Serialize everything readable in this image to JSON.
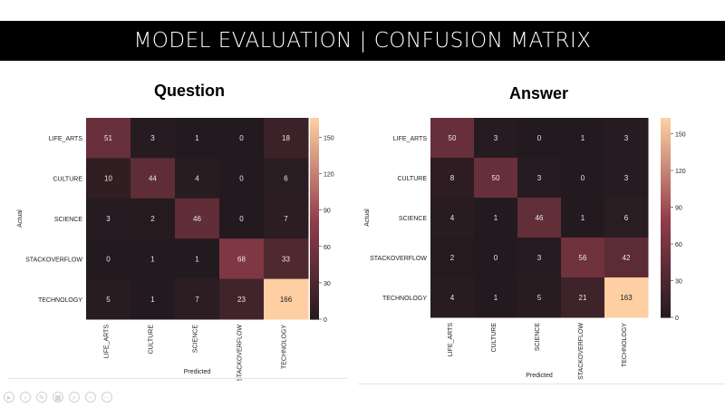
{
  "header": {
    "title": "MODEL EVALUATION | CONFUSION MATRIX"
  },
  "toolbar": {
    "icons": [
      "play-icon",
      "back-icon",
      "pen-icon",
      "grid-icon",
      "zoom-icon",
      "minus-icon",
      "more-icon"
    ]
  },
  "colors": {
    "low": "#221a1e",
    "mid": "#933d4b",
    "high": "#fdcfa2",
    "banner": "#000000"
  },
  "chart_data": [
    {
      "type": "heatmap",
      "title": "Question",
      "xlabel": "Predicted",
      "ylabel": "Actual",
      "labels": [
        "LIFE_ARTS",
        "CULTURE",
        "SCIENCE",
        "STACKOVERFLOW",
        "TECHNOLOGY"
      ],
      "matrix": [
        [
          51,
          3,
          1,
          0,
          18
        ],
        [
          10,
          44,
          4,
          0,
          6
        ],
        [
          3,
          2,
          46,
          0,
          7
        ],
        [
          0,
          1,
          1,
          68,
          33
        ],
        [
          5,
          1,
          7,
          23,
          166
        ]
      ],
      "matrix_text": [
        [
          "51",
          "3",
          "1",
          "0",
          "18"
        ],
        [
          "10",
          "44",
          "4",
          "0",
          "6"
        ],
        [
          "3",
          "2",
          "46",
          "0",
          "7"
        ],
        [
          "0",
          "1",
          "1",
          "68",
          "33"
        ],
        [
          "5",
          "1",
          "7",
          "23",
          "166"
        ]
      ],
      "colorbar": {
        "ticks": [
          "0",
          "30",
          "60",
          "90",
          "120",
          "150"
        ],
        "min": 0,
        "max": 166
      }
    },
    {
      "type": "heatmap",
      "title": "Answer",
      "xlabel": "Predicted",
      "ylabel": "Actual",
      "labels": [
        "LIFE_ARTS",
        "CULTURE",
        "SCIENCE",
        "STACKOVERFLOW",
        "TECHNOLOGY"
      ],
      "matrix": [
        [
          50,
          3,
          0,
          1,
          3
        ],
        [
          8,
          50,
          3,
          0,
          3
        ],
        [
          4,
          1,
          46,
          1,
          6
        ],
        [
          2,
          0,
          3,
          56,
          42
        ],
        [
          4,
          1,
          5,
          21,
          163
        ]
      ],
      "matrix_text": [
        [
          "50",
          "3",
          "0",
          "1",
          "3"
        ],
        [
          "8",
          "50",
          "3",
          "0",
          "3"
        ],
        [
          "4",
          "1",
          "46",
          "1",
          "6"
        ],
        [
          "2",
          "0",
          "3",
          "56",
          "42"
        ],
        [
          "4",
          "1",
          "5",
          "21",
          "163"
        ]
      ],
      "colorbar": {
        "ticks": [
          "0",
          "30",
          "60",
          "90",
          "120",
          "150"
        ],
        "min": 0,
        "max": 163
      }
    }
  ]
}
